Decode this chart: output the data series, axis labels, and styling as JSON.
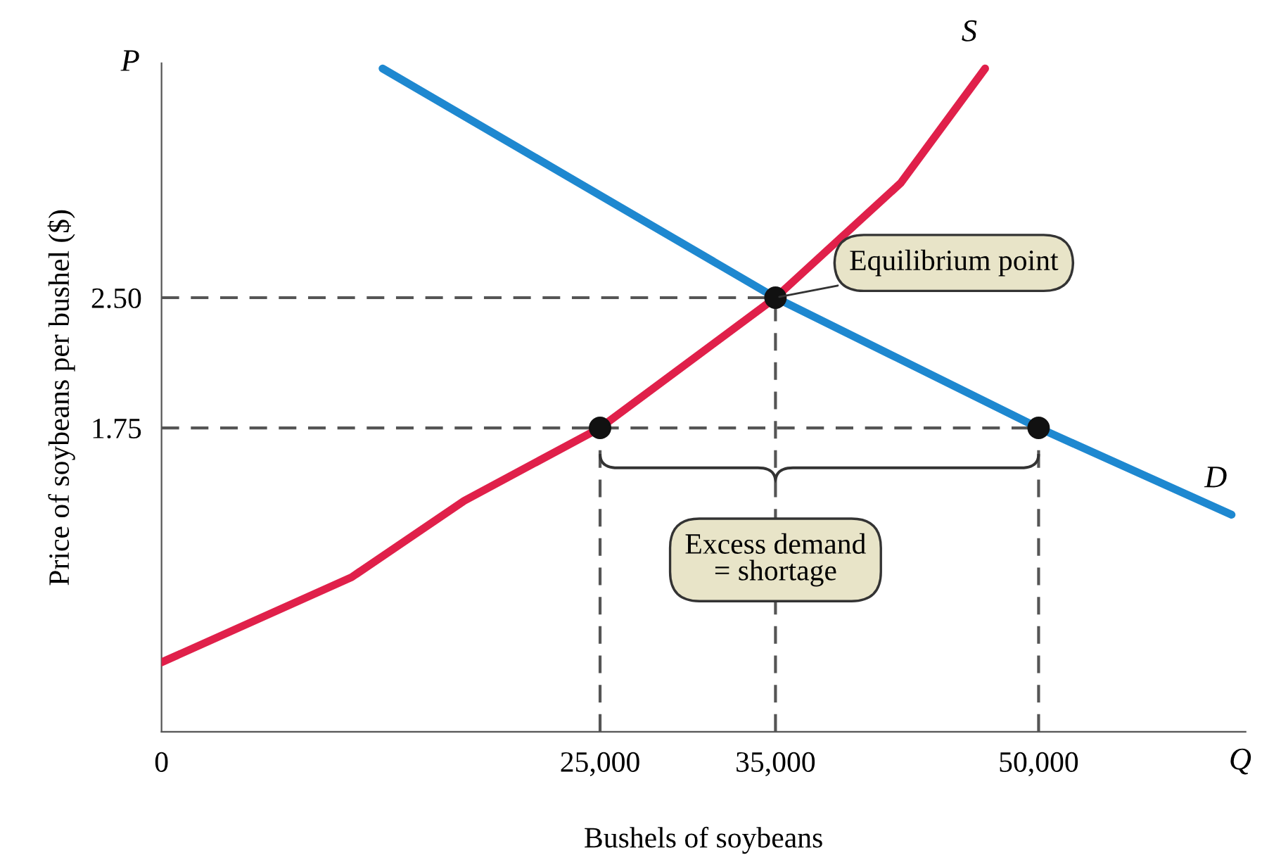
{
  "chart_data": {
    "type": "line",
    "xlabel": "Bushels of soybeans",
    "ylabel": "Price of soybeans per bushel ($)",
    "xlim": [
      0,
      61800
    ],
    "ylim": [
      0,
      3.85
    ],
    "xticks": [
      0,
      {
        "value": 25000,
        "label": "25,000"
      },
      {
        "value": 35000,
        "label": "35,000"
      },
      {
        "value": 50000,
        "label": "50,000"
      }
    ],
    "yticks": [
      {
        "value": 1.75,
        "label": "1.75"
      },
      {
        "value": 2.5,
        "label": "2.50"
      }
    ],
    "grid": false,
    "legend": false,
    "line_style": "solid",
    "series": [
      {
        "name": "S",
        "color": "#e0204a",
        "x": [
          0,
          10835,
          17255,
          25000,
          35000,
          42135,
          46950
        ],
        "values": [
          0.4,
          0.89,
          1.33,
          1.75,
          2.5,
          3.16,
          3.82
        ]
      },
      {
        "name": "D",
        "color": "#1e88d0",
        "x": [
          12600,
          35000,
          50000,
          61000
        ],
        "values": [
          3.82,
          2.5,
          1.75,
          1.25
        ]
      },
      {
        "type": "scatter",
        "marker": "circle",
        "color": "#111111",
        "x": [
          25000,
          35000,
          50000
        ],
        "values": [
          1.75,
          2.5,
          1.75
        ]
      }
    ],
    "ref_lines": [
      {
        "axis": "y",
        "value": 2.5,
        "color": "#555555",
        "line_style": "dashed"
      },
      {
        "axis": "y",
        "value": 1.75,
        "color": "#555555",
        "line_style": "dashed"
      },
      {
        "axis": "x",
        "value": 25000,
        "color": "#555555",
        "line_style": "dashed"
      },
      {
        "axis": "x",
        "value": 35000,
        "color": "#555555",
        "line_style": "dashed"
      },
      {
        "axis": "x",
        "value": 50000,
        "color": "#555555",
        "line_style": "dashed"
      }
    ],
    "annotations": [
      "P",
      "Q",
      {
        "text": "Equilibrium point",
        "x": 35000,
        "y": 2.5
      },
      "Excess demand\n= shortage"
    ]
  }
}
